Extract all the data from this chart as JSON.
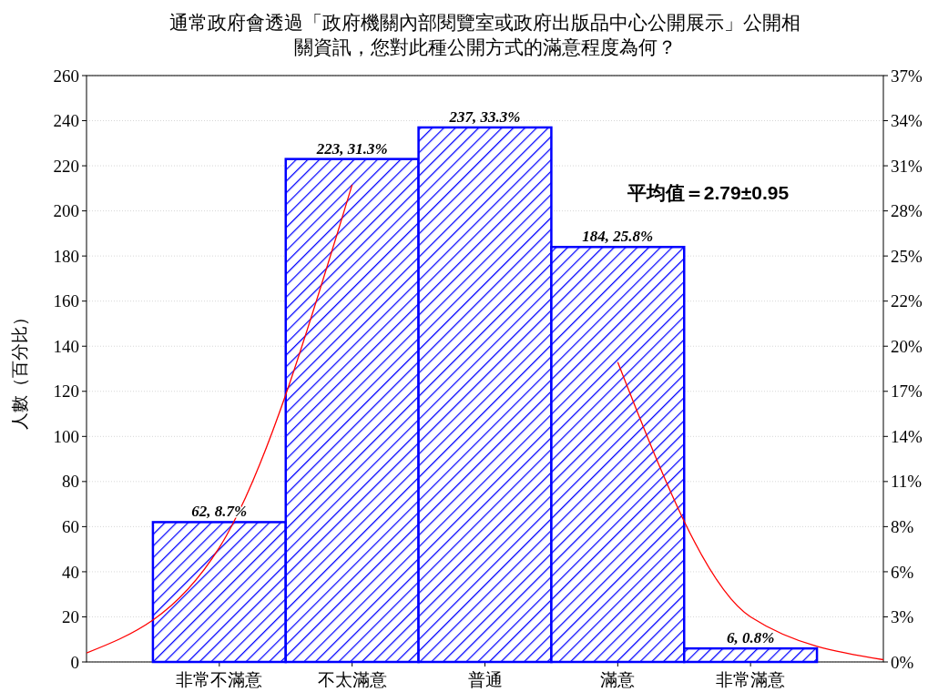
{
  "chart_data": {
    "type": "bar",
    "title": "通常政府會透過「政府機關內部閱覽室或政府出版品中心公開展示」公開相關資訊，您對此種公開方式的滿意程度為何？",
    "ylabel": "人數（百分比）",
    "categories": [
      null,
      "非常不滿意",
      "不太滿意",
      "普通",
      "滿意",
      "非常滿意",
      null
    ],
    "series": [
      {
        "color": "#0000ff",
        "values": [
          null,
          62,
          223,
          237,
          184,
          6,
          null
        ],
        "value_labels": [
          null,
          "62, 8.7%",
          "223, 31.3%",
          "237, 33.3%",
          "184, 25.8%",
          "6, 0.8%",
          null
        ]
      },
      {
        "type": "line",
        "color": "#ff0000",
        "values": [
          4,
          50.7,
          211.6,
          null,
          132.9,
          20,
          1
        ]
      }
    ],
    "ylim": [
      0,
      260
    ],
    "yticks": [
      0,
      20,
      40,
      60,
      80,
      100,
      120,
      140,
      160,
      180,
      200,
      220,
      240,
      260
    ],
    "y2lim": [
      0,
      36.517
    ],
    "y2ticks": [
      {
        "value": 0,
        "label": "0%"
      },
      {
        "value": 2.809,
        "label": "3%"
      },
      {
        "value": 5.618,
        "label": "6%"
      },
      {
        "value": 8.427,
        "label": "8%"
      },
      {
        "value": 11.236,
        "label": "11%"
      },
      {
        "value": 14.045,
        "label": "14%"
      },
      {
        "value": 16.854,
        "label": "17%"
      },
      {
        "value": 19.663,
        "label": "20%"
      },
      {
        "value": 22.472,
        "label": "22%"
      },
      {
        "value": 25.281,
        "label": "25%"
      },
      {
        "value": 28.09,
        "label": "28%"
      },
      {
        "value": 30.899,
        "label": "31%"
      },
      {
        "value": 33.708,
        "label": "34%"
      },
      {
        "value": 36.517,
        "label": "37%"
      }
    ],
    "annotations": [
      "平均值＝2.79±0.95"
    ],
    "grid": "y",
    "marker": "none"
  }
}
